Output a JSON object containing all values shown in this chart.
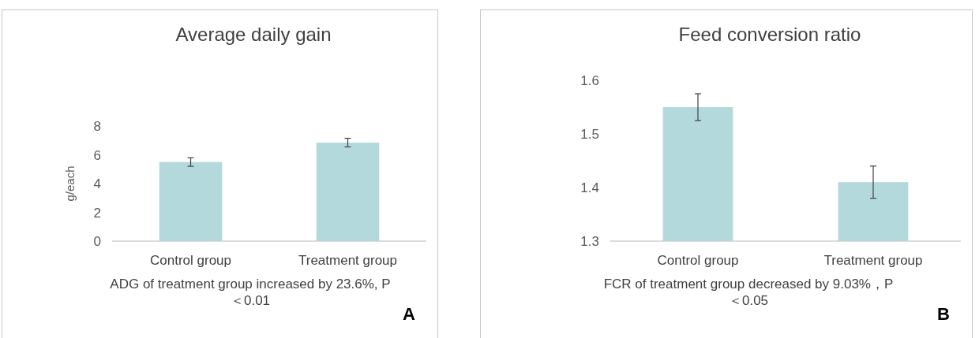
{
  "chart_data": [
    {
      "type": "bar",
      "title": "Average daily gain",
      "ylabel": "g/each",
      "categories": [
        "Control group",
        "Treatment group"
      ],
      "values": [
        5.5,
        6.85
      ],
      "errors": [
        0.3,
        0.3
      ],
      "color": "#b4d9dd",
      "ylim": [
        0,
        8
      ],
      "yticks": [
        0,
        2,
        4,
        6,
        8
      ],
      "annotations": [
        "ADG of treatment group increased by 23.6%, P＜0.01",
        "A"
      ]
    },
    {
      "type": "bar",
      "title": "Feed conversion ratio",
      "categories": [
        "Control group",
        "Treatment group"
      ],
      "values": [
        1.55,
        1.41
      ],
      "errors": [
        0.025,
        0.03
      ],
      "color": "#b4d9dd",
      "ylim": [
        1.3,
        1.6
      ],
      "yticks": [
        1.3,
        1.4,
        1.5,
        1.6
      ],
      "annotations": [
        "FCR of treatment group decreased by 9.03%，P＜0.05",
        "B"
      ]
    }
  ]
}
